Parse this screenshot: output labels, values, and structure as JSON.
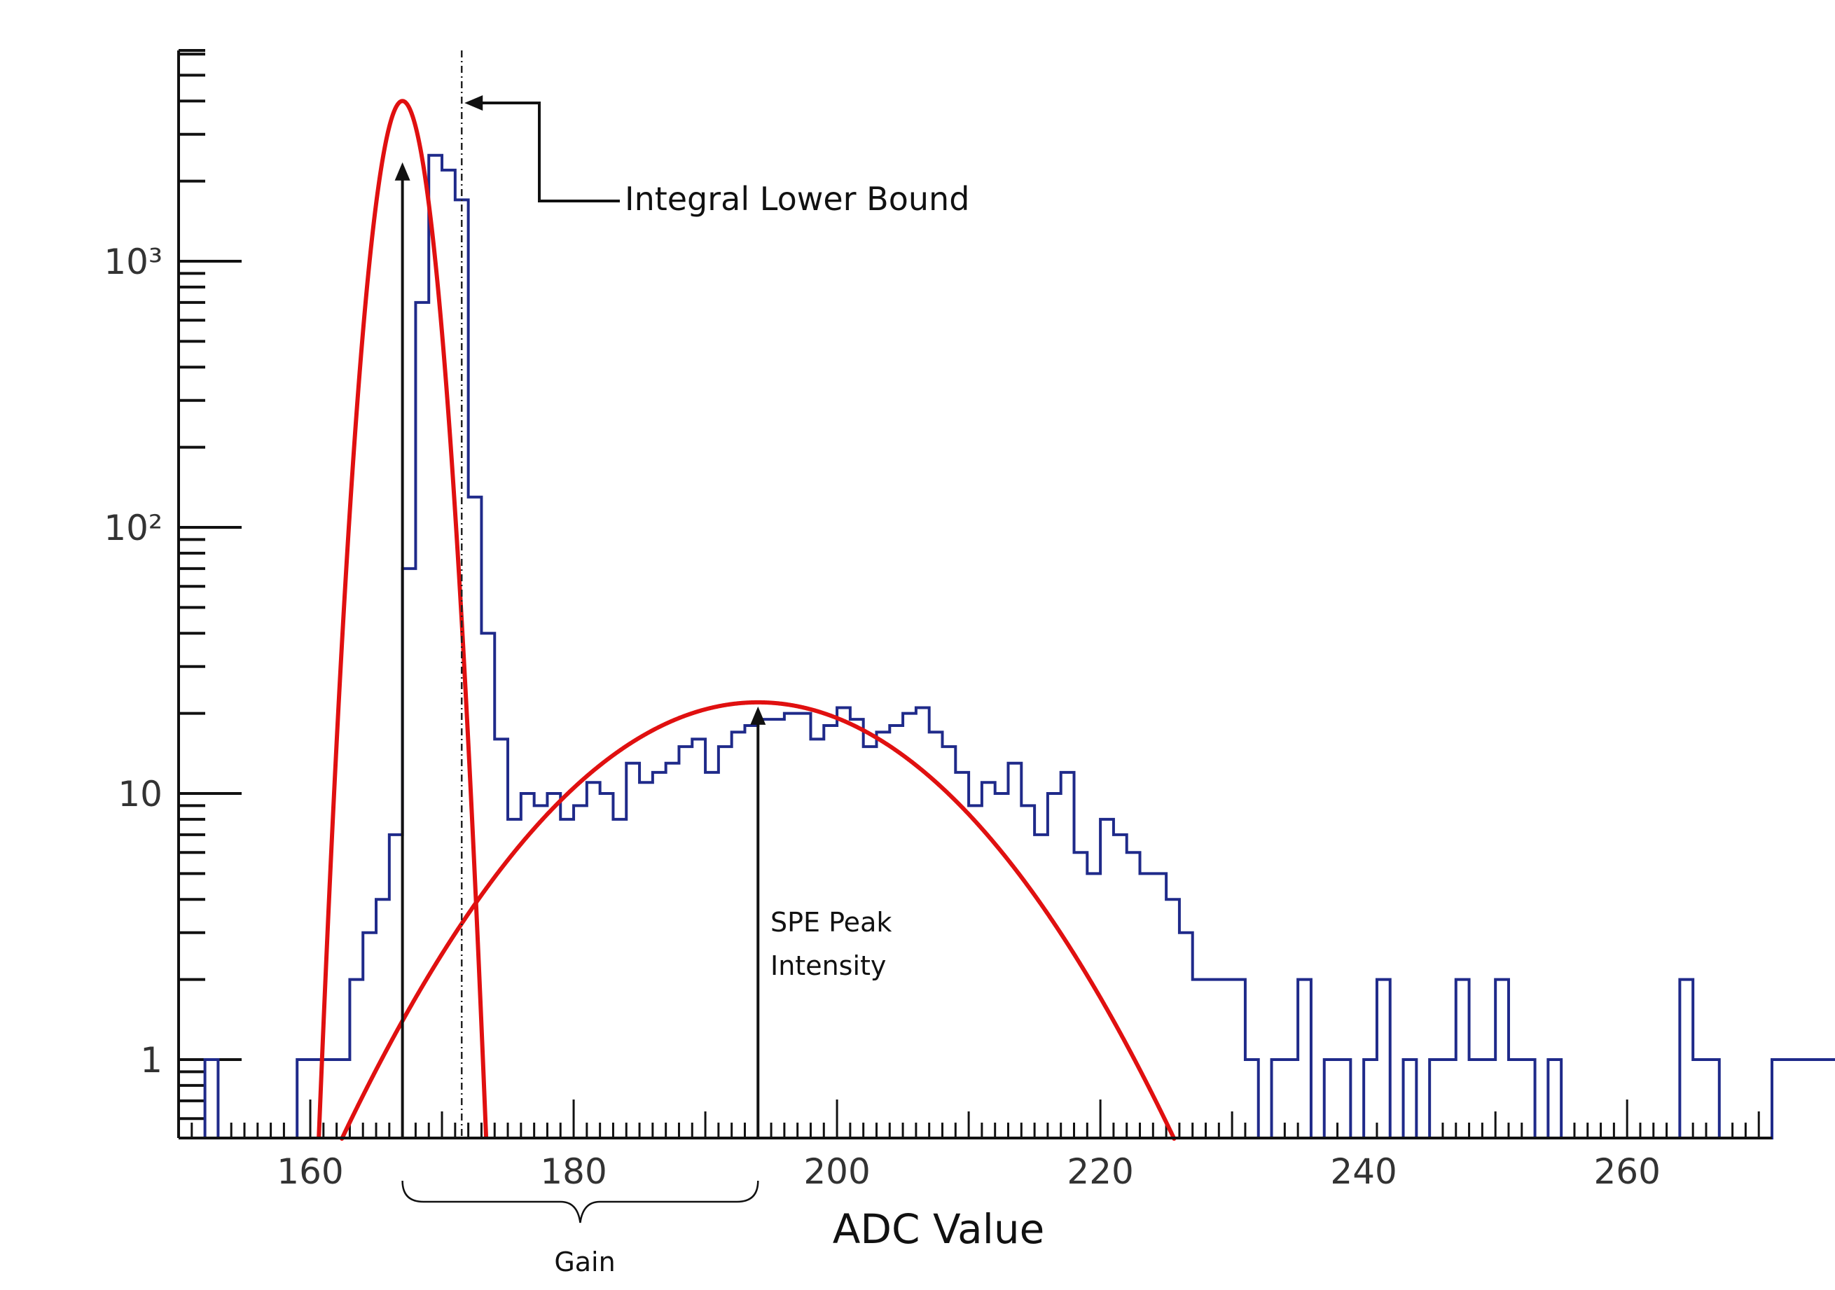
{
  "chart_data": {
    "type": "histogram",
    "xlabel": "ADC Value",
    "ylabel": "",
    "xlim": [
      150,
      271
    ],
    "ylim": [
      0.5,
      6000
    ],
    "yscale": "log",
    "x_ticks": [
      160,
      180,
      200,
      220,
      240,
      260
    ],
    "y_ticks": [
      {
        "value": 1,
        "label": "1"
      },
      {
        "value": 10,
        "label": "10"
      },
      {
        "value": 100,
        "label": "10²"
      },
      {
        "value": 1000,
        "label": "10³"
      }
    ],
    "grid": false,
    "bin_width": 1,
    "bin_start": 152,
    "histogram_color": "#1f2a8a",
    "fit_color": "#e01010",
    "histogram_counts": [
      1,
      0,
      0,
      0,
      0,
      0,
      0,
      1,
      1,
      1,
      1,
      2,
      3,
      4,
      7,
      70,
      700,
      2500,
      2200,
      1700,
      130,
      40,
      16,
      8,
      10,
      9,
      10,
      8,
      9,
      11,
      10,
      8,
      13,
      11,
      12,
      13,
      15,
      16,
      12,
      15,
      17,
      18,
      19,
      19,
      20,
      20,
      16,
      18,
      21,
      19,
      15,
      17,
      18,
      20,
      21,
      17,
      15,
      12,
      9,
      11,
      10,
      13,
      9,
      7,
      10,
      12,
      6,
      5,
      8,
      7,
      6,
      5,
      5,
      4,
      3,
      2,
      2,
      2,
      2,
      1,
      0,
      1,
      1,
      2,
      0,
      1,
      1,
      0,
      1,
      2,
      0,
      1,
      0,
      1,
      1,
      2,
      1,
      1,
      2,
      1,
      1,
      0,
      1,
      0,
      0,
      0,
      0,
      0,
      0,
      0,
      0,
      0,
      2,
      1,
      1,
      0,
      0,
      0,
      0,
      1,
      1,
      1,
      1,
      1,
      1,
      1,
      1,
      1
    ],
    "fits": [
      {
        "name": "",
        "type": "gaussian",
        "mean": 167,
        "sigma": 1.5,
        "amplitude": 4000
      },
      {
        "name": "",
        "type": "gaussian",
        "mean": 194,
        "sigma": 11.5,
        "amplitude": 22
      }
    ],
    "annotations": {
      "integral_lower_bound": {
        "text": "Integral Lower Bound",
        "x": 171.5
      },
      "spe_peak": {
        "text_line1": "SPE Peak",
        "text_line2": "Intensity",
        "x": 194,
        "y": 22
      },
      "pedestal_peak": {
        "x": 167,
        "y": 2500
      },
      "gain": {
        "text": "Gain",
        "x_from": 167,
        "x_to": 194
      }
    }
  }
}
